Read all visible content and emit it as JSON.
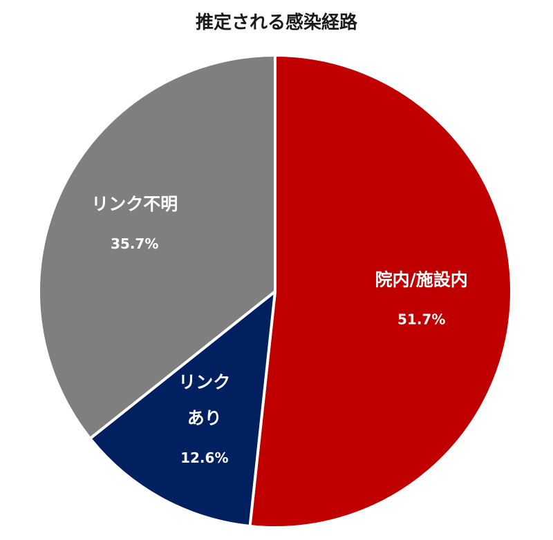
{
  "chart_data": {
    "type": "pie",
    "title": "推定される感染経路",
    "slices": [
      {
        "name": "院内/施設内",
        "label_lines": [
          "院内/施設内"
        ],
        "value": 51.7,
        "value_label": "51.7%",
        "color": "#c00000"
      },
      {
        "name": "リンクあり",
        "label_lines": [
          "リンク",
          "あり"
        ],
        "value": 12.6,
        "value_label": "12.6%",
        "color": "#002060"
      },
      {
        "name": "リンク不明",
        "label_lines": [
          "リンク不明"
        ],
        "value": 35.7,
        "value_label": "35.7%",
        "color": "#7f7f7f"
      }
    ],
    "start": "12 o'clock",
    "direction": "clockwise",
    "legend": "none"
  }
}
